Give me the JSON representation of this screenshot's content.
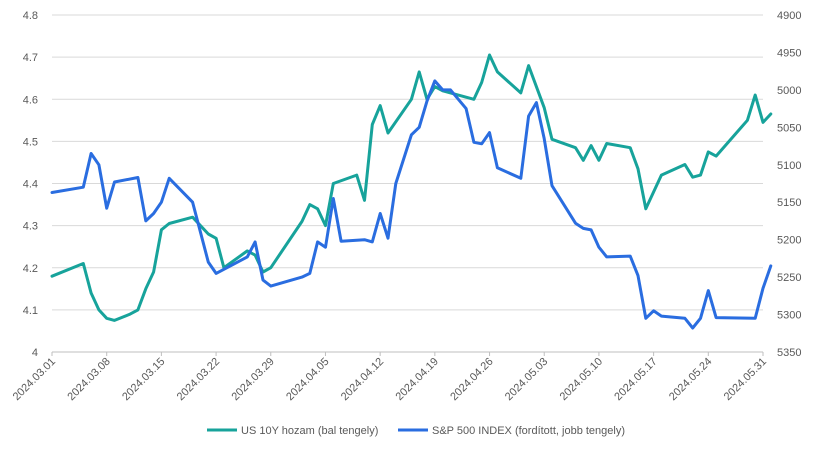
{
  "chart_data": {
    "type": "line",
    "title": "",
    "grid": "horizontal",
    "legend_position": "bottom",
    "x_axis": {
      "type": "date",
      "range": [
        "2024.03.01",
        "2024.05.31"
      ],
      "tick_labels": [
        "2024.03.01",
        "2024.03.08",
        "2024.03.15",
        "2024.03.22",
        "2024.03.29",
        "2024.04.05",
        "2024.04.12",
        "2024.04.19",
        "2024.04.26",
        "2024.05.03",
        "2024.05.10",
        "2024.05.17",
        "2024.05.24",
        "2024.05.31"
      ]
    },
    "y_axis_left": {
      "range": [
        4.0,
        4.8
      ],
      "ticks": [
        4.0,
        4.1,
        4.2,
        4.3,
        4.4,
        4.5,
        4.6,
        4.7,
        4.8
      ],
      "tick_labels": [
        "4",
        "4.1",
        "4.2",
        "4.3",
        "4.4",
        "4.5",
        "4.6",
        "4.7",
        "4.8"
      ]
    },
    "y_axis_right": {
      "range": [
        4900,
        5350
      ],
      "reversed": true,
      "ticks": [
        4900,
        4950,
        5000,
        5050,
        5100,
        5150,
        5200,
        5250,
        5300,
        5350
      ],
      "tick_labels": [
        "4900",
        "4950",
        "5000",
        "5050",
        "5100",
        "5150",
        "5200",
        "5250",
        "5300",
        "5350"
      ]
    },
    "series": [
      {
        "name": "US 10Y hozam (bal tengely)",
        "axis": "left",
        "color": "#17a39b",
        "points": [
          [
            "2024.03.01",
            4.18
          ],
          [
            "2024.03.05",
            4.21
          ],
          [
            "2024.03.06",
            4.14
          ],
          [
            "2024.03.07",
            4.1
          ],
          [
            "2024.03.08",
            4.08
          ],
          [
            "2024.03.09",
            4.075
          ],
          [
            "2024.03.11",
            4.09
          ],
          [
            "2024.03.12",
            4.1
          ],
          [
            "2024.03.13",
            4.15
          ],
          [
            "2024.03.14",
            4.19
          ],
          [
            "2024.03.15",
            4.29
          ],
          [
            "2024.03.16",
            4.305
          ],
          [
            "2024.03.19",
            4.32
          ],
          [
            "2024.03.21",
            4.28
          ],
          [
            "2024.03.22",
            4.27
          ],
          [
            "2024.03.23",
            4.2
          ],
          [
            "2024.03.26",
            4.24
          ],
          [
            "2024.03.27",
            4.23
          ],
          [
            "2024.03.28",
            4.19
          ],
          [
            "2024.03.29",
            4.2
          ],
          [
            "2024.04.02",
            4.31
          ],
          [
            "2024.04.03",
            4.35
          ],
          [
            "2024.04.04",
            4.34
          ],
          [
            "2024.04.05",
            4.3
          ],
          [
            "2024.04.06",
            4.4
          ],
          [
            "2024.04.09",
            4.42
          ],
          [
            "2024.04.10",
            4.36
          ],
          [
            "2024.04.11",
            4.54
          ],
          [
            "2024.04.12",
            4.585
          ],
          [
            "2024.04.13",
            4.52
          ],
          [
            "2024.04.16",
            4.6
          ],
          [
            "2024.04.17",
            4.665
          ],
          [
            "2024.04.18",
            4.6
          ],
          [
            "2024.04.19",
            4.63
          ],
          [
            "2024.04.20",
            4.62
          ],
          [
            "2024.04.24",
            4.6
          ],
          [
            "2024.04.25",
            4.64
          ],
          [
            "2024.04.26",
            4.705
          ],
          [
            "2024.04.27",
            4.665
          ],
          [
            "2024.04.30",
            4.615
          ],
          [
            "2024.05.01",
            4.68
          ],
          [
            "2024.05.03",
            4.58
          ],
          [
            "2024.05.04",
            4.505
          ],
          [
            "2024.05.07",
            4.485
          ],
          [
            "2024.05.08",
            4.455
          ],
          [
            "2024.05.09",
            4.49
          ],
          [
            "2024.05.10",
            4.455
          ],
          [
            "2024.05.11",
            4.495
          ],
          [
            "2024.05.14",
            4.485
          ],
          [
            "2024.05.15",
            4.435
          ],
          [
            "2024.05.16",
            4.34
          ],
          [
            "2024.05.18",
            4.42
          ],
          [
            "2024.05.21",
            4.445
          ],
          [
            "2024.05.22",
            4.415
          ],
          [
            "2024.05.23",
            4.42
          ],
          [
            "2024.05.24",
            4.475
          ],
          [
            "2024.05.25",
            4.465
          ],
          [
            "2024.05.29",
            4.55
          ],
          [
            "2024.05.30",
            4.61
          ],
          [
            "2024.05.31",
            4.545
          ],
          [
            "2024.06.01",
            4.565
          ]
        ]
      },
      {
        "name": "S&P 500 INDEX (fordított, jobb tengely)",
        "axis": "right",
        "color": "#2a6de0",
        "points": [
          [
            "2024.03.01",
            5137
          ],
          [
            "2024.03.05",
            5130
          ],
          [
            "2024.03.06",
            5085
          ],
          [
            "2024.03.07",
            5100
          ],
          [
            "2024.03.08",
            5158
          ],
          [
            "2024.03.09",
            5123
          ],
          [
            "2024.03.12",
            5117
          ],
          [
            "2024.03.13",
            5175
          ],
          [
            "2024.03.14",
            5165
          ],
          [
            "2024.03.15",
            5150
          ],
          [
            "2024.03.16",
            5118
          ],
          [
            "2024.03.19",
            5150
          ],
          [
            "2024.03.21",
            5230
          ],
          [
            "2024.03.22",
            5245
          ],
          [
            "2024.03.26",
            5223
          ],
          [
            "2024.03.27",
            5203
          ],
          [
            "2024.03.28",
            5254
          ],
          [
            "2024.03.29",
            5262
          ],
          [
            "2024.04.02",
            5250
          ],
          [
            "2024.04.03",
            5245
          ],
          [
            "2024.04.04",
            5203
          ],
          [
            "2024.04.05",
            5210
          ],
          [
            "2024.04.06",
            5145
          ],
          [
            "2024.04.07",
            5202
          ],
          [
            "2024.04.10",
            5200
          ],
          [
            "2024.04.11",
            5203
          ],
          [
            "2024.04.12",
            5165
          ],
          [
            "2024.04.13",
            5198
          ],
          [
            "2024.04.14",
            5125
          ],
          [
            "2024.04.16",
            5060
          ],
          [
            "2024.04.17",
            5050
          ],
          [
            "2024.04.18",
            5015
          ],
          [
            "2024.04.19",
            4988
          ],
          [
            "2024.04.20",
            5000
          ],
          [
            "2024.04.21",
            5000
          ],
          [
            "2024.04.23",
            5025
          ],
          [
            "2024.04.24",
            5070
          ],
          [
            "2024.04.25",
            5072
          ],
          [
            "2024.04.26",
            5057
          ],
          [
            "2024.04.27",
            5104
          ],
          [
            "2024.04.30",
            5118
          ],
          [
            "2024.05.01",
            5035
          ],
          [
            "2024.05.02",
            5017
          ],
          [
            "2024.05.03",
            5065
          ],
          [
            "2024.05.04",
            5128
          ],
          [
            "2024.05.07",
            5178
          ],
          [
            "2024.05.08",
            5185
          ],
          [
            "2024.05.09",
            5187
          ],
          [
            "2024.05.10",
            5210
          ],
          [
            "2024.05.11",
            5223
          ],
          [
            "2024.05.14",
            5222
          ],
          [
            "2024.05.15",
            5248
          ],
          [
            "2024.05.16",
            5305
          ],
          [
            "2024.05.17",
            5295
          ],
          [
            "2024.05.18",
            5302
          ],
          [
            "2024.05.21",
            5305
          ],
          [
            "2024.05.22",
            5318
          ],
          [
            "2024.05.23",
            5305
          ],
          [
            "2024.05.24",
            5268
          ],
          [
            "2024.05.25",
            5304
          ],
          [
            "2024.05.30",
            5305
          ],
          [
            "2024.05.31",
            5265
          ],
          [
            "2024.06.01",
            5235
          ]
        ]
      }
    ]
  }
}
